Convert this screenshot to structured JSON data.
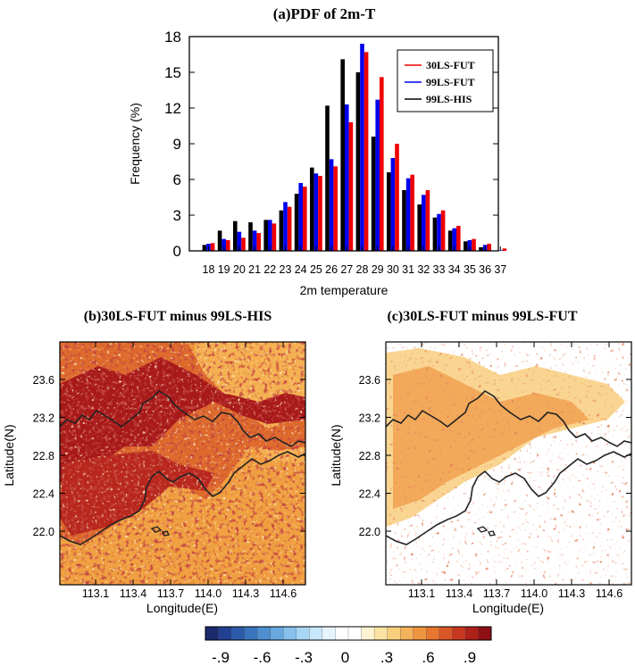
{
  "chart_data": [
    {
      "type": "bar",
      "title": "(a)PDF of 2m-T",
      "xlabel": "2m temperature",
      "ylabel": "Frequency (%)",
      "ylim": [
        0,
        18
      ],
      "yticks": [
        "0",
        "3",
        "6",
        "9",
        "12",
        "15",
        "18"
      ],
      "categories": [
        "18",
        "19",
        "20",
        "21",
        "22",
        "23",
        "24",
        "25",
        "26",
        "27",
        "28",
        "29",
        "30",
        "31",
        "32",
        "33",
        "34",
        "35",
        "36",
        "37"
      ],
      "legend_position": "top-right",
      "series": [
        {
          "name": "99LS-HIS",
          "color": "#000000",
          "values": [
            0.5,
            1.7,
            2.5,
            2.4,
            2.6,
            3.4,
            4.8,
            7.0,
            12.2,
            16.1,
            15.0,
            9.6,
            6.6,
            5.1,
            3.9,
            2.8,
            1.7,
            0.8,
            0.3,
            0.0
          ]
        },
        {
          "name": "99LS-FUT",
          "color": "#0000ee",
          "values": [
            0.6,
            1.0,
            1.6,
            1.7,
            2.6,
            4.1,
            5.7,
            6.5,
            7.7,
            12.3,
            17.4,
            12.7,
            7.8,
            6.1,
            4.7,
            3.1,
            1.9,
            0.9,
            0.5,
            0.05
          ]
        },
        {
          "name": "30LS-FUT",
          "color": "#ee0000",
          "values": [
            0.65,
            0.9,
            1.1,
            1.5,
            2.3,
            3.7,
            5.4,
            6.3,
            7.1,
            10.8,
            16.7,
            14.6,
            9.0,
            6.4,
            5.1,
            3.4,
            2.1,
            1.0,
            0.6,
            0.2
          ]
        }
      ]
    },
    {
      "type": "heatmap",
      "title": "(b)30LS-FUT minus 99LS-HIS",
      "xlabel": "Longitude(E)",
      "ylabel": "Latitude(N)",
      "xticks": [
        "113.1",
        "113.4",
        "113.7",
        "114.0",
        "114.3",
        "114.6"
      ],
      "yticks": [
        "22.0",
        "22.4",
        "22.8",
        "23.2",
        "23.6"
      ]
    },
    {
      "type": "heatmap",
      "title": "(c)30LS-FUT minus 99LS-FUT",
      "xlabel": "Longitude(E)",
      "ylabel": "Latitude(N)",
      "xticks": [
        "113.1",
        "113.4",
        "113.7",
        "114.0",
        "114.3",
        "114.6"
      ],
      "yticks": [
        "22.0",
        "22.4",
        "22.8",
        "23.2",
        "23.6"
      ]
    }
  ],
  "colorbar": {
    "labels": [
      "-.9",
      "-.6",
      "-.3",
      "0",
      ".3",
      ".6",
      ".9"
    ],
    "colors": [
      "#1a2a6c",
      "#233f92",
      "#2d5aa8",
      "#3a74bd",
      "#4e8fcf",
      "#68a8de",
      "#86c0eb",
      "#a8d6f4",
      "#c8e7fa",
      "#e6f4fd",
      "#ffffff",
      "#ffffff",
      "#fdf3d2",
      "#fbe3a4",
      "#f8cf7c",
      "#f4b25a",
      "#ee9540",
      "#e67630",
      "#d95626",
      "#c6381f",
      "#ae2119",
      "#8e1014"
    ]
  }
}
